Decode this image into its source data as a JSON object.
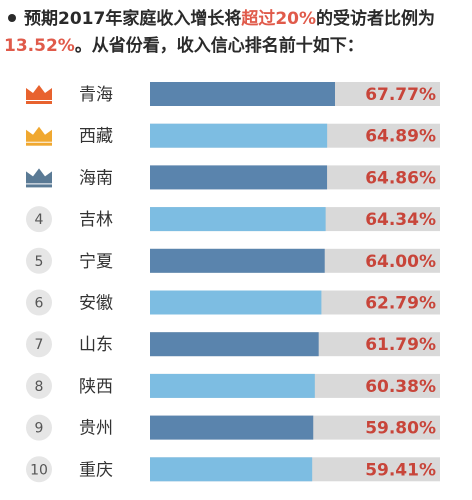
{
  "header": {
    "part1": "预期2017年家庭收入增长将",
    "highlight1": "超过20%",
    "part2": "的受访者比例为",
    "highlight2": "13.52%",
    "part3": "。从省份看，收入信心排名前十如下："
  },
  "colors": {
    "bar_dark": "#5a84ad",
    "bar_light": "#7dbde2",
    "track": "#d9d9d9",
    "value_text": "#c8453a",
    "crown_gold1": "#e8622e",
    "crown_gold2": "#f0a830",
    "crown_blue": "#5a7a95",
    "rank_circle": "#e6e6e6"
  },
  "chart_data": {
    "type": "bar",
    "orientation": "horizontal",
    "ranks": [
      "1",
      "2",
      "3",
      "4",
      "5",
      "6",
      "7",
      "8",
      "9",
      "10"
    ],
    "categories": [
      "青海",
      "西藏",
      "海南",
      "吉林",
      "宁夏",
      "安徽",
      "山东",
      "陕西",
      "贵州",
      "重庆"
    ],
    "values": [
      67.77,
      64.89,
      64.86,
      64.34,
      64.0,
      62.79,
      61.79,
      60.38,
      59.8,
      59.41
    ],
    "value_labels": [
      "67.77%",
      "64.89%",
      "64.86%",
      "64.34%",
      "64.00%",
      "62.79%",
      "61.79%",
      "60.38%",
      "59.80%",
      "59.41%"
    ],
    "top3_icons": [
      "crown-icon",
      "crown-icon",
      "crown-icon"
    ],
    "xlim": [
      0,
      100
    ]
  }
}
